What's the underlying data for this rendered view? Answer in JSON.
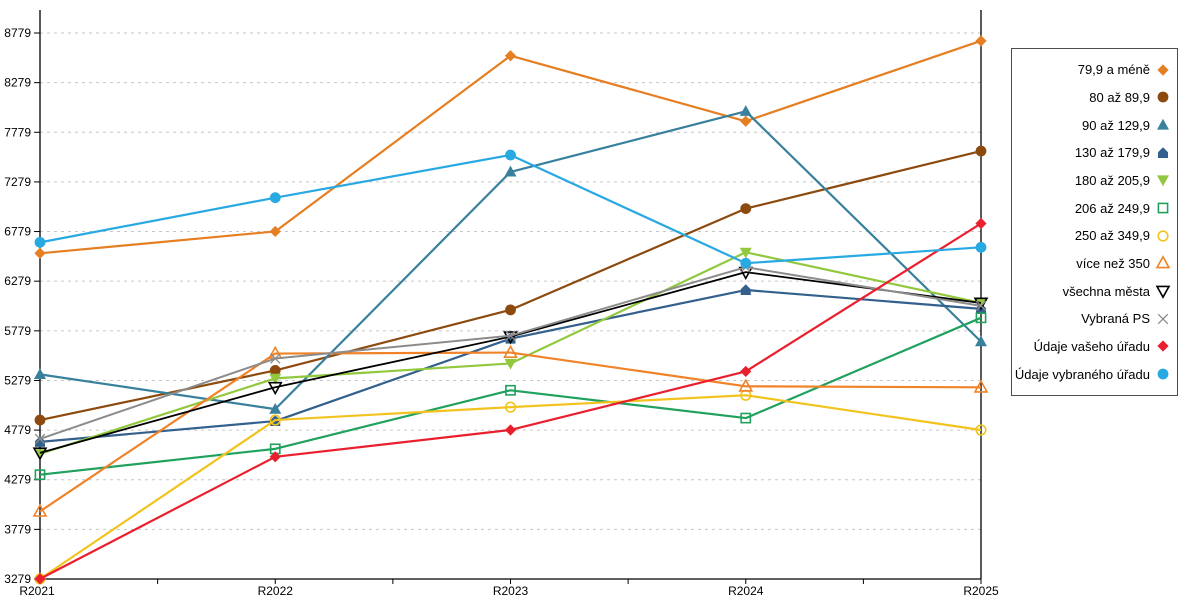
{
  "chart_data": {
    "type": "line",
    "title": "",
    "xlabel": "",
    "ylabel": "",
    "x_categories": [
      "R2021",
      "R2022",
      "R2023",
      "R2024",
      "R2025"
    ],
    "y_ticks": [
      3279,
      3779,
      4279,
      4779,
      5279,
      5779,
      6279,
      6779,
      7279,
      7779,
      8279,
      8779
    ],
    "ylim": [
      3279,
      8779
    ],
    "grid": "horizontal-dashed",
    "gridline_color": "#c6c6c6",
    "axis_color": "#000000",
    "legend_position": "right",
    "series": [
      {
        "name": "79,9 a méně",
        "marker": "diamond",
        "fill": "solid",
        "color": "#e67e22",
        "values": [
          6560,
          6780,
          8550,
          7890,
          8700
        ]
      },
      {
        "name": "80 až 89,9",
        "marker": "circle",
        "fill": "solid",
        "color": "#8c4a0f",
        "values": [
          4880,
          5380,
          5990,
          7010,
          7590
        ]
      },
      {
        "name": "90 až 129,9",
        "marker": "triangle-up",
        "fill": "solid",
        "color": "#38809c",
        "values": [
          5340,
          4990,
          7380,
          7990,
          5670
        ]
      },
      {
        "name": "130 až 179,9",
        "marker": "pentagon",
        "fill": "solid",
        "color": "#33608c",
        "values": [
          4660,
          4870,
          5700,
          6190,
          6000
        ]
      },
      {
        "name": "180 až 205,9",
        "marker": "triangle-down",
        "fill": "solid",
        "color": "#92c83e",
        "values": [
          4540,
          5300,
          5450,
          6570,
          6060
        ]
      },
      {
        "name": "206 až 249,9",
        "marker": "square",
        "fill": "open",
        "color": "#21a15e",
        "values": [
          4330,
          4590,
          5180,
          4900,
          5910
        ]
      },
      {
        "name": "250 až 349,9",
        "marker": "circle",
        "fill": "open",
        "color": "#f2c31e",
        "values": [
          3280,
          4880,
          5010,
          5130,
          4780
        ]
      },
      {
        "name": "více než 350",
        "marker": "triangle-up",
        "fill": "open",
        "color": "#f08228",
        "values": [
          3960,
          5550,
          5560,
          5220,
          5210
        ]
      },
      {
        "name": "všechna města",
        "marker": "triangle-down",
        "fill": "open",
        "color": "#000000",
        "values": [
          4550,
          5210,
          5720,
          6370,
          6060
        ]
      },
      {
        "name": "Vybraná PS",
        "marker": "x",
        "fill": "open",
        "color": "#8c8c8c",
        "values": [
          4690,
          5500,
          5730,
          6420,
          6030
        ]
      },
      {
        "name": "Údaje vašeho úřadu",
        "marker": "diamond",
        "fill": "solid",
        "color": "#ea1f2e",
        "values": [
          3280,
          4510,
          4780,
          5370,
          6860
        ]
      },
      {
        "name": "Údaje vybraného úřadu",
        "marker": "circle",
        "fill": "solid",
        "color": "#29a9e1",
        "values": [
          6670,
          7120,
          7550,
          6460,
          6620
        ]
      }
    ]
  }
}
